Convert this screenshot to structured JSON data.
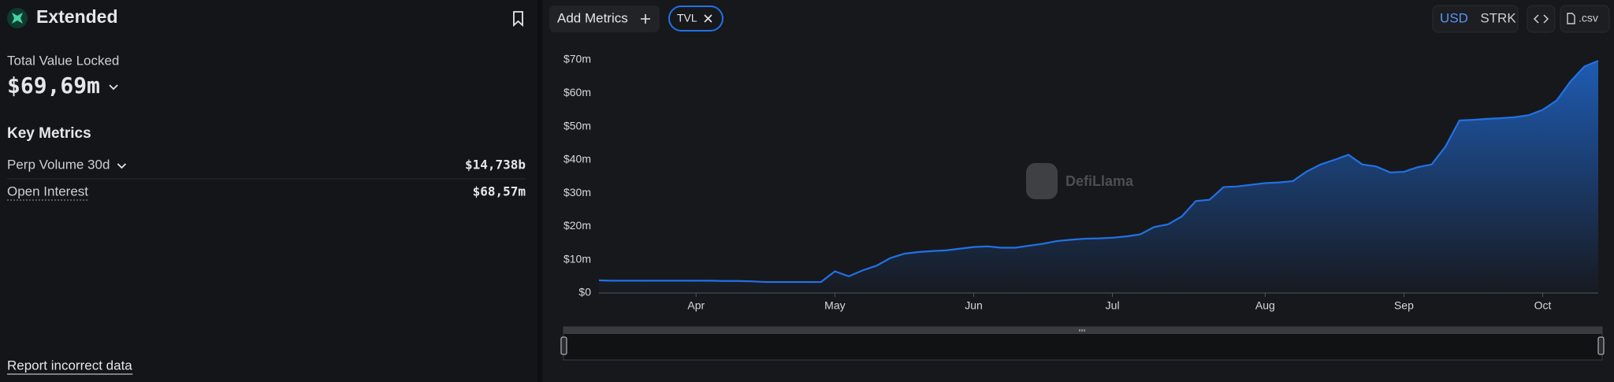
{
  "sidebar": {
    "name": "Extended",
    "tvl_label": "Total Value Locked",
    "tvl_value": "$69,69m",
    "key_metrics_title": "Key Metrics",
    "metrics": [
      {
        "label": "Perp Volume 30d",
        "value": "$14,738b"
      },
      {
        "label": "Open Interest",
        "value": "$68,57m"
      }
    ],
    "report_link": "Report incorrect data"
  },
  "toolbar": {
    "add_metrics": "Add Metrics",
    "currencies": [
      "USD",
      "STRK"
    ],
    "active_currency": "USD",
    "csv": ".csv"
  },
  "watermark": "DefiLlama",
  "chart_data": {
    "type": "area",
    "categories": [
      null,
      null,
      null,
      null,
      null,
      null,
      null,
      "Apr",
      null,
      null,
      null,
      null,
      null,
      null,
      null,
      null,
      null,
      "May",
      null,
      null,
      null,
      null,
      null,
      null,
      null,
      null,
      null,
      "Jun",
      null,
      null,
      null,
      null,
      null,
      null,
      null,
      null,
      null,
      "Jul",
      null,
      null,
      null,
      null,
      null,
      null,
      null,
      null,
      null,
      null,
      "Aug",
      null,
      null,
      null,
      null,
      null,
      null,
      null,
      null,
      null,
      "Sep",
      null,
      null,
      null,
      null,
      null,
      null,
      null,
      null,
      null,
      "Oct",
      null,
      null,
      null,
      null
    ],
    "series": [
      {
        "name": "TVL",
        "color": "#2172e5",
        "values": [
          3.8,
          3.7,
          3.7,
          3.7,
          3.7,
          3.7,
          3.7,
          3.7,
          3.7,
          3.6,
          3.6,
          3.5,
          3.3,
          3.3,
          3.3,
          3.3,
          3.3,
          6.5,
          5.0,
          6.8,
          8.2,
          10.5,
          11.8,
          12.3,
          12.6,
          12.8,
          13.3,
          13.8,
          14.0,
          13.6,
          13.6,
          14.2,
          14.8,
          15.6,
          16.0,
          16.3,
          16.4,
          16.6,
          17.0,
          17.6,
          19.8,
          20.6,
          23.0,
          27.6,
          28.0,
          31.8,
          32.0,
          32.5,
          33.0,
          33.2,
          33.6,
          36.5,
          38.6,
          40.0,
          41.5,
          38.6,
          38.0,
          36.2,
          36.4,
          37.8,
          38.6,
          44.0,
          51.8,
          52.0,
          52.3,
          52.5,
          52.8,
          53.4,
          55.0,
          57.8,
          63.5,
          68.0,
          69.7
        ]
      }
    ],
    "ylim": [
      0,
      70
    ],
    "yticks": [
      {
        "value": 0,
        "label": "$0"
      },
      {
        "value": 10,
        "label": "$10m"
      },
      {
        "value": 20,
        "label": "$20m"
      },
      {
        "value": 30,
        "label": "$30m"
      },
      {
        "value": 40,
        "label": "$40m"
      },
      {
        "value": 50,
        "label": "$50m"
      },
      {
        "value": 60,
        "label": "$60m"
      },
      {
        "value": 70,
        "label": "$70m"
      }
    ],
    "grid": false
  }
}
